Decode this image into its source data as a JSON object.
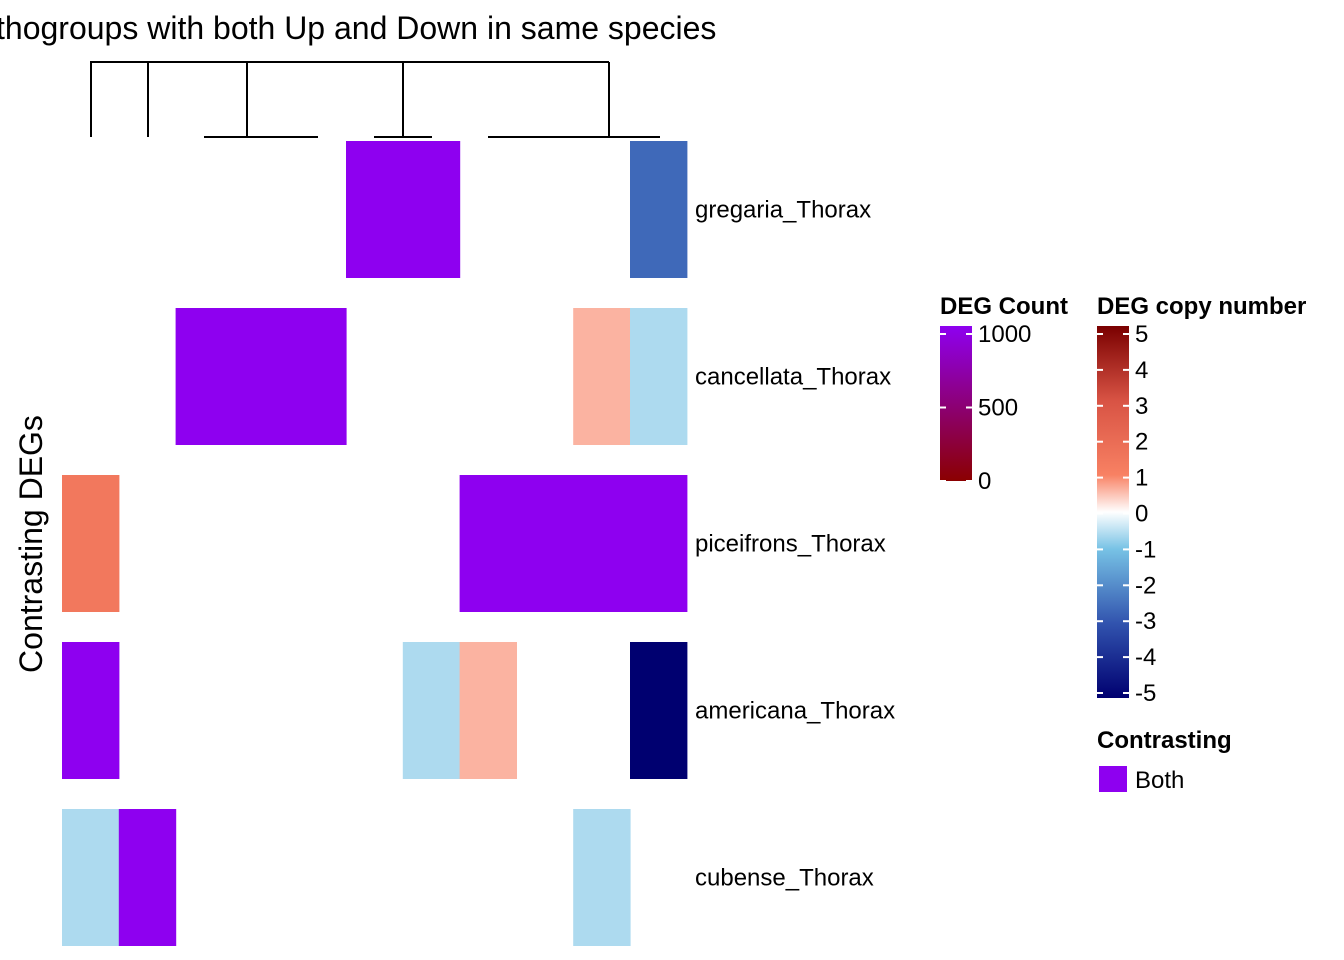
{
  "chart_data": {
    "type": "heatmap",
    "title": "thogroups with both Up and Down in same species",
    "ylabel": "Contrasting DEGs",
    "rows": [
      "gregaria_Thorax",
      "cancellata_Thorax",
      "piceifrons_Thorax",
      "americana_Thorax",
      "cubense_Thorax"
    ],
    "n_columns": 11,
    "cells": [
      {
        "row": 0,
        "col": 5,
        "kind": "count",
        "value": 1000
      },
      {
        "row": 0,
        "col": 6,
        "kind": "count",
        "value": 1000
      },
      {
        "row": 0,
        "col": 10,
        "kind": "copy",
        "value": -3
      },
      {
        "row": 1,
        "col": 2,
        "kind": "count",
        "value": 1000
      },
      {
        "row": 1,
        "col": 3,
        "kind": "count",
        "value": 1000
      },
      {
        "row": 1,
        "col": 4,
        "kind": "count",
        "value": 1000
      },
      {
        "row": 1,
        "col": 9,
        "kind": "copy",
        "value": 1
      },
      {
        "row": 1,
        "col": 10,
        "kind": "copy",
        "value": -1
      },
      {
        "row": 2,
        "col": 0,
        "kind": "copy",
        "value": 2
      },
      {
        "row": 2,
        "col": 7,
        "kind": "count",
        "value": 1000
      },
      {
        "row": 2,
        "col": 8,
        "kind": "count",
        "value": 1000
      },
      {
        "row": 2,
        "col": 9,
        "kind": "count",
        "value": 1000
      },
      {
        "row": 2,
        "col": 10,
        "kind": "count",
        "value": 1000
      },
      {
        "row": 3,
        "col": 0,
        "kind": "count",
        "value": 1000
      },
      {
        "row": 3,
        "col": 6,
        "kind": "copy",
        "value": -1
      },
      {
        "row": 3,
        "col": 7,
        "kind": "copy",
        "value": 1
      },
      {
        "row": 3,
        "col": 10,
        "kind": "copy",
        "value": -5
      },
      {
        "row": 4,
        "col": 0,
        "kind": "copy",
        "value": -1
      },
      {
        "row": 4,
        "col": 1,
        "kind": "count",
        "value": 1000
      },
      {
        "row": 4,
        "col": 9,
        "kind": "copy",
        "value": -1
      }
    ],
    "legends": {
      "deg_count": {
        "title": "DEG Count",
        "ticks": [
          "1000",
          "500",
          "0"
        ],
        "range": [
          0,
          1000
        ],
        "colors": [
          "#8B0000",
          "#8E00F0"
        ]
      },
      "copy_number": {
        "title": "DEG copy number",
        "ticks": [
          "5",
          "4",
          "3",
          "2",
          "1",
          "0",
          "-1",
          "-2",
          "-3",
          "-4",
          "-5"
        ],
        "range": [
          -5,
          5
        ],
        "colors": [
          "#000070",
          "#3153AE",
          "#77C2E5",
          "#FFFFFF",
          "#F88163",
          "#D85344",
          "#7A0000"
        ]
      },
      "contrasting": {
        "title": "Contrasting",
        "item": "Both",
        "color": "#8E00F0"
      }
    }
  }
}
